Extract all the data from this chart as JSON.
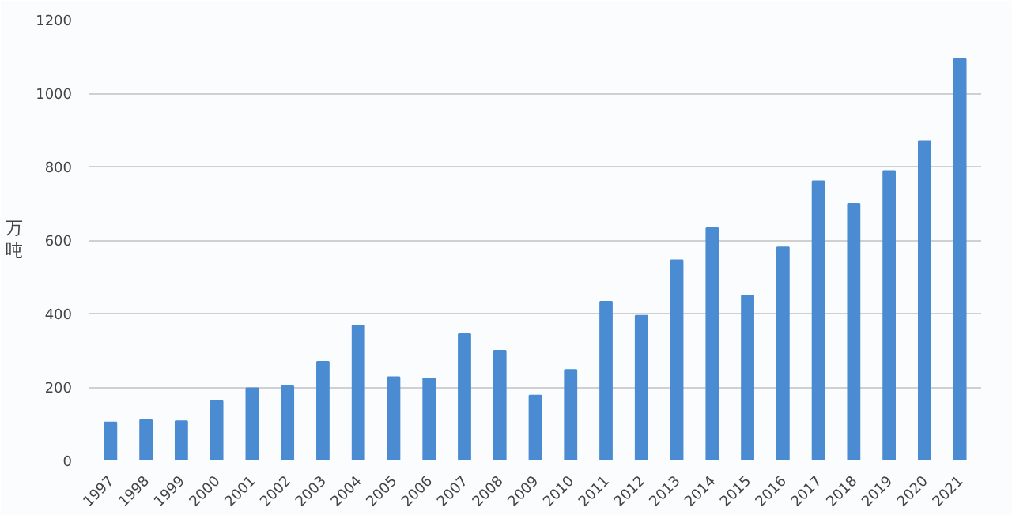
{
  "chart_data": {
    "type": "bar",
    "ylabel": "万吨",
    "categories": [
      "1997",
      "1998",
      "1999",
      "2000",
      "2001",
      "2002",
      "2003",
      "2004",
      "2005",
      "2006",
      "2007",
      "2008",
      "2009",
      "2010",
      "2011",
      "2012",
      "2013",
      "2014",
      "2015",
      "2016",
      "2017",
      "2018",
      "2019",
      "2020",
      "2021"
    ],
    "values": [
      104,
      110,
      107,
      162,
      197,
      202,
      269,
      368,
      227,
      223,
      344,
      299,
      177,
      247,
      432,
      394,
      545,
      632,
      449,
      580,
      760,
      699,
      788,
      870,
      1093
    ],
    "color": "#4a8bd2",
    "ylim": [
      0,
      1200
    ],
    "yticks": [
      0,
      200,
      400,
      600,
      800,
      1000,
      1200
    ],
    "grid": "y"
  }
}
